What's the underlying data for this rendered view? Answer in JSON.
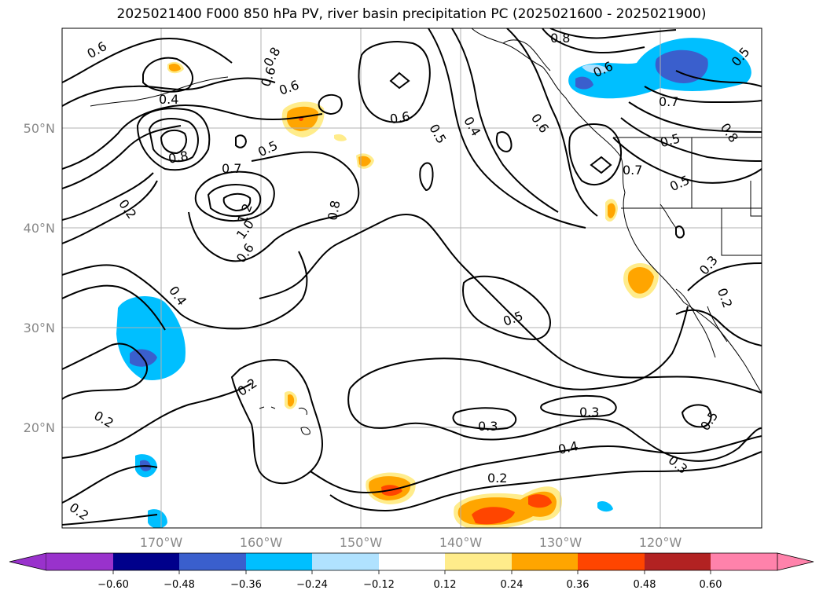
{
  "title": "2025021400 F000 850 hPa PV, river basin precipitation PC (2025021600 - 2025021900)",
  "lat_labels": [
    "50°N",
    "40°N",
    "30°N",
    "20°N"
  ],
  "lon_labels": [
    "170°W",
    "160°W",
    "150°W",
    "140°W",
    "130°W",
    "120°W"
  ],
  "contour_labels": [
    "0.6",
    "0.8",
    "0.8",
    "0.6",
    "0.4",
    "0.6",
    "0.5",
    "0.4",
    "0.6",
    "0.8",
    "0.6",
    "0.6",
    "0.5",
    "0.8",
    "0.7",
    "0.5",
    "0.7",
    "0.5",
    "0.5",
    "0.8",
    "0.7",
    "1.2",
    "1.0",
    "0.6",
    "0.2",
    "0.4",
    "0.2",
    "0.2",
    "0.2",
    "0.5",
    "0.3",
    "0.3",
    "0.4",
    "0.2",
    "0.3",
    "0.5",
    "0.3",
    "0.2"
  ],
  "colorbar": {
    "ticks": [
      "−0.60",
      "−0.48",
      "−0.36",
      "−0.24",
      "−0.12",
      "0.12",
      "0.24",
      "0.36",
      "0.48",
      "0.60"
    ],
    "colors": [
      "#9932cc",
      "#00008b",
      "#3a5fcd",
      "#00bfff",
      "#b0e2ff",
      "#ffffff",
      "#ffec8b",
      "#ffa500",
      "#ff4500",
      "#b22222",
      "#ff82ab"
    ]
  }
}
